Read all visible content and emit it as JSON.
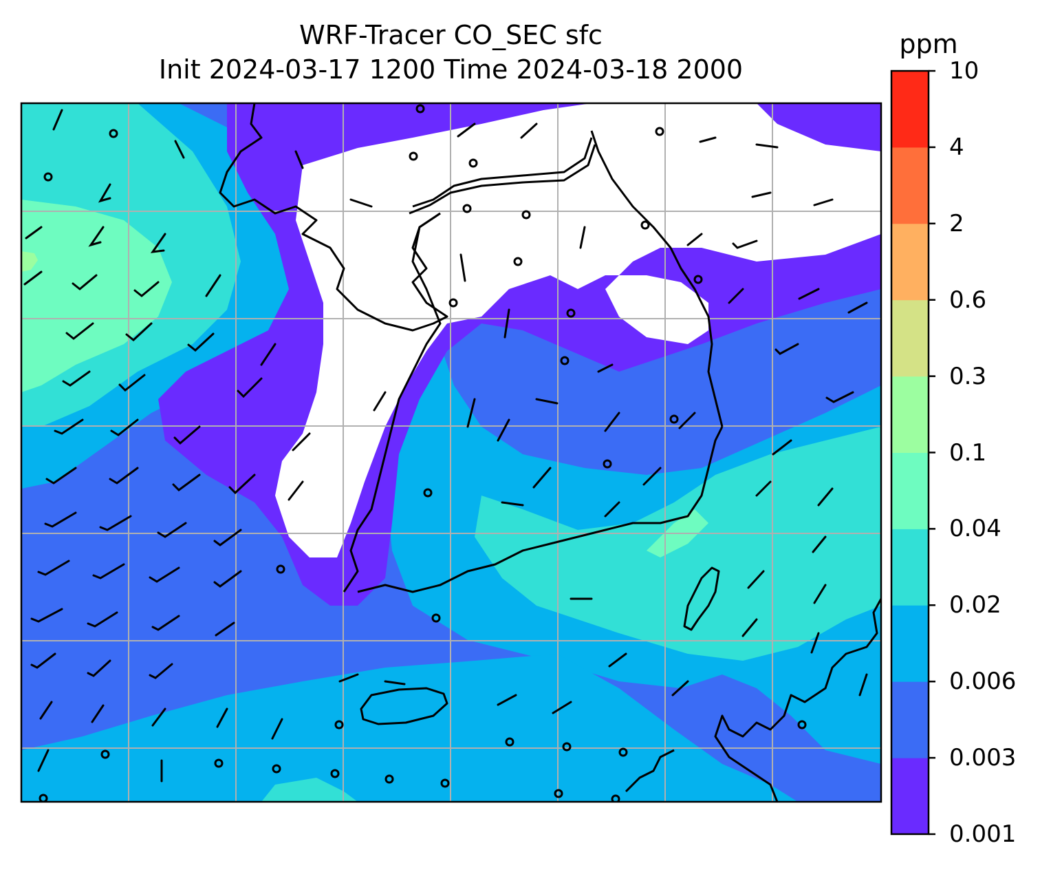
{
  "title": {
    "line1": "WRF-Tracer CO_SEC sfc",
    "line2": "Init 2024-03-17 1200 Time 2024-03-18 2000"
  },
  "colorbar": {
    "unit": "ppm",
    "ticks": [
      "0.001",
      "0.003",
      "0.006",
      "0.02",
      "0.04",
      "0.1",
      "0.3",
      "0.6",
      "2",
      "4",
      "10"
    ],
    "colors": [
      "#6a2bff",
      "#3b6cf5",
      "#05b2ee",
      "#32e0d6",
      "#6efcc0",
      "#9cfea0",
      "#d4e286",
      "#ffb060",
      "#ff6f3a",
      "#ff2a17"
    ]
  },
  "map": {
    "variable": "CO_SEC",
    "level": "sfc",
    "unit": "ppm",
    "below_lowest_color": "#ffffff",
    "gridlines": true,
    "overlay": "wind barbs"
  }
}
